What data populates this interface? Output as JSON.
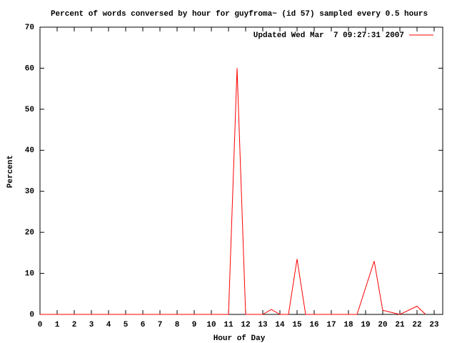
{
  "chart_data": {
    "type": "line",
    "title": "Percent of words conversed by hour for guyfroma~ (id 57) sampled every 0.5 hours",
    "x_label": "Hour of Day",
    "y_label": "Percent",
    "x": [
      0,
      11,
      11.5,
      12,
      13,
      13.5,
      14,
      14.5,
      15,
      15.5,
      18.5,
      19.5,
      20,
      20.5,
      21,
      22,
      22.5
    ],
    "series": [
      {
        "name": "Updated Wed Mar  7 09:27:31 2007",
        "color": "#ff0000",
        "values": [
          0,
          0,
          60,
          0,
          0,
          1.2,
          0,
          0,
          13.5,
          0,
          0,
          13,
          1,
          0.5,
          0,
          2,
          0
        ]
      }
    ],
    "xlim": [
      0,
      23.5
    ],
    "xticks": [
      0,
      1,
      2,
      3,
      4,
      5,
      6,
      7,
      8,
      9,
      10,
      11,
      12,
      13,
      14,
      15,
      16,
      17,
      18,
      19,
      20,
      21,
      22,
      23
    ],
    "ylim": [
      0,
      70
    ],
    "yticks": [
      0,
      10,
      20,
      30,
      40,
      50,
      60,
      70
    ],
    "legend": "top-right"
  }
}
